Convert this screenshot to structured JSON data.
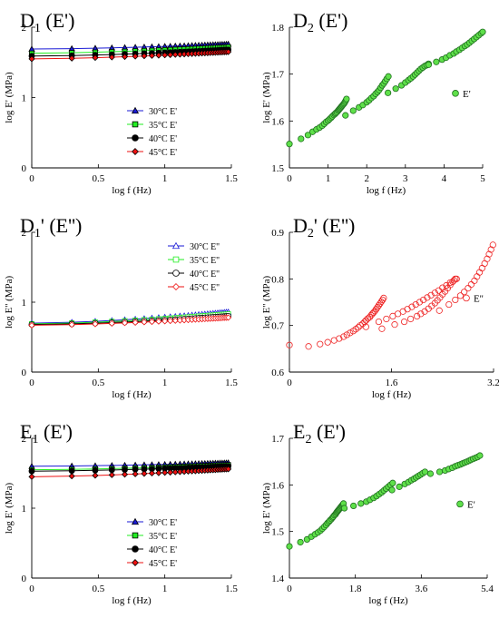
{
  "colors": {
    "c30": "#1a1ad6",
    "c35": "#22ee22",
    "c40": "#000000",
    "c45": "#ee1111",
    "green_fill": "#5fe04a",
    "green_stroke": "#1f6f1f",
    "red_open": "#ee2222",
    "marker_ticks": "#000000"
  },
  "chart_data": [
    {
      "id": "D1",
      "type": "line",
      "title_main": "D",
      "title_sub": "1",
      "title_tail": " (E')",
      "xlabel": "log f (Hz)",
      "ylabel": "log E' (MPa)",
      "xlim": [
        0,
        1.5
      ],
      "ylim": [
        0,
        2
      ],
      "xticks": [
        "0",
        "0.5",
        "1",
        "1.5"
      ],
      "xtick_values": [
        0,
        0.5,
        1,
        1.5
      ],
      "yticks": [
        "0",
        "1",
        "2"
      ],
      "ytick_values": [
        0,
        1,
        2
      ],
      "legend_placement": "bottom-right",
      "marker_fill": "filled",
      "series": [
        {
          "name": "30°C  E'",
          "color_key": "c30",
          "marker": "triangle",
          "x_start": 0,
          "x_end": 1.477,
          "y_start": 1.69,
          "y_end": 1.76
        },
        {
          "name": "35°C  E'",
          "color_key": "c35",
          "marker": "square",
          "x_start": 0,
          "x_end": 1.477,
          "y_start": 1.63,
          "y_end": 1.72
        },
        {
          "name": "40°C  E'",
          "color_key": "c40",
          "marker": "circle",
          "x_start": 0,
          "x_end": 1.477,
          "y_start": 1.59,
          "y_end": 1.68
        },
        {
          "name": "45°C  E'",
          "color_key": "c45",
          "marker": "diamond",
          "x_start": 0,
          "x_end": 1.477,
          "y_start": 1.55,
          "y_end": 1.65
        }
      ]
    },
    {
      "id": "D2",
      "type": "scatter",
      "title_main": "D",
      "title_sub": "2",
      "title_tail": " (E')",
      "xlabel": "log f (Hz)",
      "ylabel": "log E' (MPa)",
      "xlim": [
        0,
        5
      ],
      "ylim": [
        1.5,
        1.8
      ],
      "xticks": [
        "0",
        "1",
        "2",
        "3",
        "4",
        "5"
      ],
      "xtick_values": [
        0,
        1,
        2,
        3,
        4,
        5
      ],
      "yticks": [
        "1.5",
        "1.6",
        "1.7",
        "1.8"
      ],
      "ytick_values": [
        1.5,
        1.6,
        1.7,
        1.8
      ],
      "legend_placement": "right",
      "marker": "circle",
      "style": "green",
      "series": [
        {
          "name": "E'",
          "segments": [
            {
              "x": [
                0,
                0.3,
                0.48,
                0.6,
                0.7,
                0.78,
                0.85,
                0.9,
                0.95,
                1.0,
                1.04,
                1.08,
                1.11,
                1.15,
                1.18,
                1.2,
                1.23,
                1.26,
                1.28,
                1.3,
                1.32,
                1.34,
                1.36,
                1.38,
                1.4,
                1.42,
                1.44,
                1.46,
                1.477
              ],
              "y": [
                1.551,
                1.562,
                1.57,
                1.577,
                1.582,
                1.586,
                1.59,
                1.594,
                1.598,
                1.601,
                1.604,
                1.607,
                1.61,
                1.613,
                1.615,
                1.617,
                1.619,
                1.622,
                1.624,
                1.626,
                1.628,
                1.63,
                1.632,
                1.634,
                1.636,
                1.638,
                1.641,
                1.644,
                1.647
              ]
            },
            {
              "x": [
                1.45,
                1.65,
                1.8,
                1.9,
                2.0,
                2.06,
                2.12,
                2.18,
                2.23,
                2.28,
                2.32,
                2.36,
                2.4,
                2.44,
                2.48,
                2.52,
                2.56
              ],
              "y": [
                1.612,
                1.622,
                1.629,
                1.634,
                1.64,
                1.644,
                1.649,
                1.653,
                1.658,
                1.662,
                1.666,
                1.671,
                1.676,
                1.68,
                1.685,
                1.69,
                1.695
              ]
            },
            {
              "x": [
                2.55,
                2.75,
                2.9,
                3.0,
                3.08,
                3.14,
                3.2,
                3.25,
                3.3,
                3.35,
                3.4,
                3.45,
                3.5,
                3.55,
                3.6
              ],
              "y": [
                1.66,
                1.669,
                1.676,
                1.682,
                1.687,
                1.691,
                1.695,
                1.699,
                1.703,
                1.707,
                1.711,
                1.714,
                1.717,
                1.719,
                1.722
              ]
            },
            {
              "x": [
                3.6,
                3.8,
                3.95,
                4.05,
                4.15,
                4.25,
                4.32,
                4.4,
                4.47,
                4.54,
                4.6,
                4.66,
                4.72,
                4.78,
                4.84,
                4.9,
                4.96,
                5.0
              ],
              "y": [
                1.72,
                1.726,
                1.731,
                1.735,
                1.74,
                1.744,
                1.748,
                1.752,
                1.756,
                1.76,
                1.763,
                1.767,
                1.771,
                1.775,
                1.779,
                1.783,
                1.787,
                1.79
              ]
            }
          ]
        }
      ]
    },
    {
      "id": "D1p",
      "type": "line",
      "title_main": "D",
      "title_sub": "1",
      "title_tail": "' (E'')",
      "xlabel": "log f (Hz)",
      "ylabel": "log E'' (MPa)",
      "xlim": [
        0,
        1.5
      ],
      "ylim": [
        0,
        2
      ],
      "xticks": [
        "0",
        "0.5",
        "1",
        "1.5"
      ],
      "xtick_values": [
        0,
        0.5,
        1,
        1.5
      ],
      "yticks": [
        "0",
        "1",
        "2"
      ],
      "ytick_values": [
        0,
        1,
        2
      ],
      "legend_placement": "top-right",
      "marker_fill": "open",
      "series": [
        {
          "name": "30°C  E''",
          "color_key": "c30",
          "marker": "triangle",
          "x_start": 0,
          "x_end": 1.477,
          "y_start": 0.7,
          "y_end": 0.86
        },
        {
          "name": "35°C  E''",
          "color_key": "c35",
          "marker": "square",
          "x_start": 0,
          "x_end": 1.477,
          "y_start": 0.69,
          "y_end": 0.83
        },
        {
          "name": "40°C  E''",
          "color_key": "c40",
          "marker": "circle",
          "x_start": 0,
          "x_end": 1.477,
          "y_start": 0.68,
          "y_end": 0.8
        },
        {
          "name": "45°C  E''",
          "color_key": "c45",
          "marker": "diamond",
          "x_start": 0,
          "x_end": 1.477,
          "y_start": 0.67,
          "y_end": 0.78
        }
      ]
    },
    {
      "id": "D2p",
      "type": "scatter",
      "title_main": "D",
      "title_sub": "2",
      "title_tail": "' (E'')",
      "xlabel": "log f (Hz)",
      "ylabel": "log E'' (MPa)",
      "xlim": [
        0,
        3.2
      ],
      "ylim": [
        0.6,
        0.9
      ],
      "xticks": [
        "0",
        "1.6",
        "3.2"
      ],
      "xtick_values": [
        0,
        1.6,
        3.2
      ],
      "yticks": [
        "0.6",
        "0.7",
        "0.8",
        "0.9"
      ],
      "ytick_values": [
        0.6,
        0.7,
        0.8,
        0.9
      ],
      "legend_placement": "right",
      "marker": "circle",
      "style": "red-open",
      "series": [
        {
          "name": "E''",
          "segments": [
            {
              "x": [
                0,
                0.3,
                0.48,
                0.6,
                0.7,
                0.78,
                0.85,
                0.9,
                0.95,
                1.0,
                1.04,
                1.08,
                1.11,
                1.15,
                1.18,
                1.2,
                1.23,
                1.26,
                1.28,
                1.3,
                1.32,
                1.34,
                1.36,
                1.38,
                1.4,
                1.42,
                1.44,
                1.46,
                1.477
              ],
              "y": [
                0.658,
                0.655,
                0.66,
                0.664,
                0.668,
                0.672,
                0.676,
                0.68,
                0.684,
                0.688,
                0.692,
                0.696,
                0.7,
                0.704,
                0.708,
                0.711,
                0.715,
                0.718,
                0.722,
                0.725,
                0.728,
                0.731,
                0.735,
                0.739,
                0.743,
                0.747,
                0.751,
                0.755,
                0.759
              ]
            },
            {
              "x": [
                1.45,
                1.65,
                1.8,
                1.9,
                2.0,
                2.06,
                2.12,
                2.18,
                2.23,
                2.28,
                2.32,
                2.36,
                2.4,
                2.44,
                2.48,
                2.52,
                2.56,
                2.6
              ],
              "y": [
                0.693,
                0.702,
                0.708,
                0.714,
                0.72,
                0.725,
                0.73,
                0.736,
                0.742,
                0.748,
                0.754,
                0.76,
                0.767,
                0.773,
                0.78,
                0.787,
                0.794,
                0.8
              ]
            },
            {
              "x": [
                1.2,
                1.4,
                1.52,
                1.62,
                1.7,
                1.78,
                1.85,
                1.92,
                1.98,
                2.04,
                2.1,
                2.16,
                2.22,
                2.28,
                2.34,
                2.4,
                2.46,
                2.52,
                2.58,
                2.62
              ],
              "y": [
                0.697,
                0.708,
                0.714,
                0.72,
                0.725,
                0.73,
                0.735,
                0.74,
                0.745,
                0.75,
                0.755,
                0.76,
                0.765,
                0.77,
                0.775,
                0.781,
                0.786,
                0.792,
                0.797,
                0.8
              ]
            },
            {
              "x": [
                2.35,
                2.5,
                2.6,
                2.68,
                2.74,
                2.8,
                2.85,
                2.9,
                2.94,
                2.98,
                3.02,
                3.06,
                3.1,
                3.13,
                3.16,
                3.19
              ],
              "y": [
                0.732,
                0.745,
                0.755,
                0.764,
                0.772,
                0.78,
                0.788,
                0.796,
                0.805,
                0.814,
                0.823,
                0.833,
                0.843,
                0.853,
                0.863,
                0.873
              ]
            }
          ]
        }
      ]
    },
    {
      "id": "E1",
      "type": "line",
      "title_main": "E",
      "title_sub": "1",
      "title_tail": " (E')",
      "xlabel": "log f (Hz)",
      "ylabel": "log E' (MPa)",
      "xlim": [
        0,
        1.5
      ],
      "ylim": [
        0,
        2
      ],
      "xticks": [
        "0",
        "0.5",
        "1",
        "1.5"
      ],
      "xtick_values": [
        0,
        0.5,
        1,
        1.5
      ],
      "yticks": [
        "0",
        "1",
        "2"
      ],
      "ytick_values": [
        0,
        1,
        2
      ],
      "legend_placement": "bottom-right",
      "marker_fill": "filled",
      "series": [
        {
          "name": "30°C  E'",
          "color_key": "c30",
          "marker": "triangle",
          "x_start": 0,
          "x_end": 1.477,
          "y_start": 1.6,
          "y_end": 1.65
        },
        {
          "name": "35°C  E'",
          "color_key": "c35",
          "marker": "square",
          "x_start": 0,
          "x_end": 1.477,
          "y_start": 1.55,
          "y_end": 1.62
        },
        {
          "name": "40°C  E'",
          "color_key": "c40",
          "marker": "circle",
          "x_start": 0,
          "x_end": 1.477,
          "y_start": 1.53,
          "y_end": 1.6
        },
        {
          "name": "45°C  E'",
          "color_key": "c45",
          "marker": "diamond",
          "x_start": 0,
          "x_end": 1.477,
          "y_start": 1.45,
          "y_end": 1.56
        }
      ]
    },
    {
      "id": "E2",
      "type": "scatter",
      "title_main": "E",
      "title_sub": "2",
      "title_tail": " (E')",
      "xlabel": "log f (Hz)",
      "ylabel": "log E' (MPa)",
      "xlim": [
        0,
        5.4
      ],
      "ylim": [
        1.4,
        1.7
      ],
      "xticks": [
        "0",
        "1.8",
        "3.6",
        "5.4"
      ],
      "xtick_values": [
        0,
        1.8,
        3.6,
        5.4
      ],
      "yticks": [
        "1.4",
        "1.5",
        "1.6",
        "1.7"
      ],
      "ytick_values": [
        1.4,
        1.5,
        1.6,
        1.7
      ],
      "legend_placement": "right",
      "marker": "circle",
      "style": "green",
      "series": [
        {
          "name": "E'",
          "segments": [
            {
              "x": [
                0,
                0.3,
                0.48,
                0.6,
                0.7,
                0.78,
                0.85,
                0.9,
                0.95,
                1.0,
                1.04,
                1.08,
                1.11,
                1.15,
                1.18,
                1.2,
                1.23,
                1.26,
                1.28,
                1.3,
                1.32,
                1.34,
                1.36,
                1.38,
                1.4,
                1.42,
                1.44,
                1.46,
                1.477
              ],
              "y": [
                1.468,
                1.477,
                1.483,
                1.489,
                1.494,
                1.498,
                1.502,
                1.506,
                1.51,
                1.514,
                1.518,
                1.521,
                1.524,
                1.527,
                1.53,
                1.532,
                1.535,
                1.537,
                1.54,
                1.542,
                1.544,
                1.546,
                1.548,
                1.55,
                1.552,
                1.554,
                1.556,
                1.558,
                1.56
              ]
            },
            {
              "x": [
                1.5,
                1.75,
                1.95,
                2.1,
                2.2,
                2.3,
                2.38,
                2.45,
                2.52,
                2.58,
                2.64,
                2.7,
                2.76,
                2.82
              ],
              "y": [
                1.55,
                1.555,
                1.56,
                1.564,
                1.568,
                1.572,
                1.576,
                1.58,
                1.584,
                1.588,
                1.592,
                1.596,
                1.6,
                1.604
              ]
            },
            {
              "x": [
                2.8,
                3.0,
                3.15,
                3.25,
                3.33,
                3.4,
                3.46,
                3.52,
                3.58,
                3.64,
                3.7
              ],
              "y": [
                1.589,
                1.596,
                1.602,
                1.606,
                1.61,
                1.613,
                1.616,
                1.619,
                1.622,
                1.625,
                1.628
              ]
            },
            {
              "x": [
                3.85,
                4.1,
                4.25,
                4.35,
                4.45,
                4.53,
                4.6,
                4.67,
                4.73,
                4.79,
                4.85,
                4.91,
                4.96,
                5.02,
                5.08,
                5.14,
                5.2
              ],
              "y": [
                1.624,
                1.628,
                1.631,
                1.634,
                1.637,
                1.64,
                1.642,
                1.644,
                1.646,
                1.648,
                1.65,
                1.652,
                1.654,
                1.656,
                1.658,
                1.66,
                1.663
              ]
            }
          ]
        }
      ]
    }
  ]
}
